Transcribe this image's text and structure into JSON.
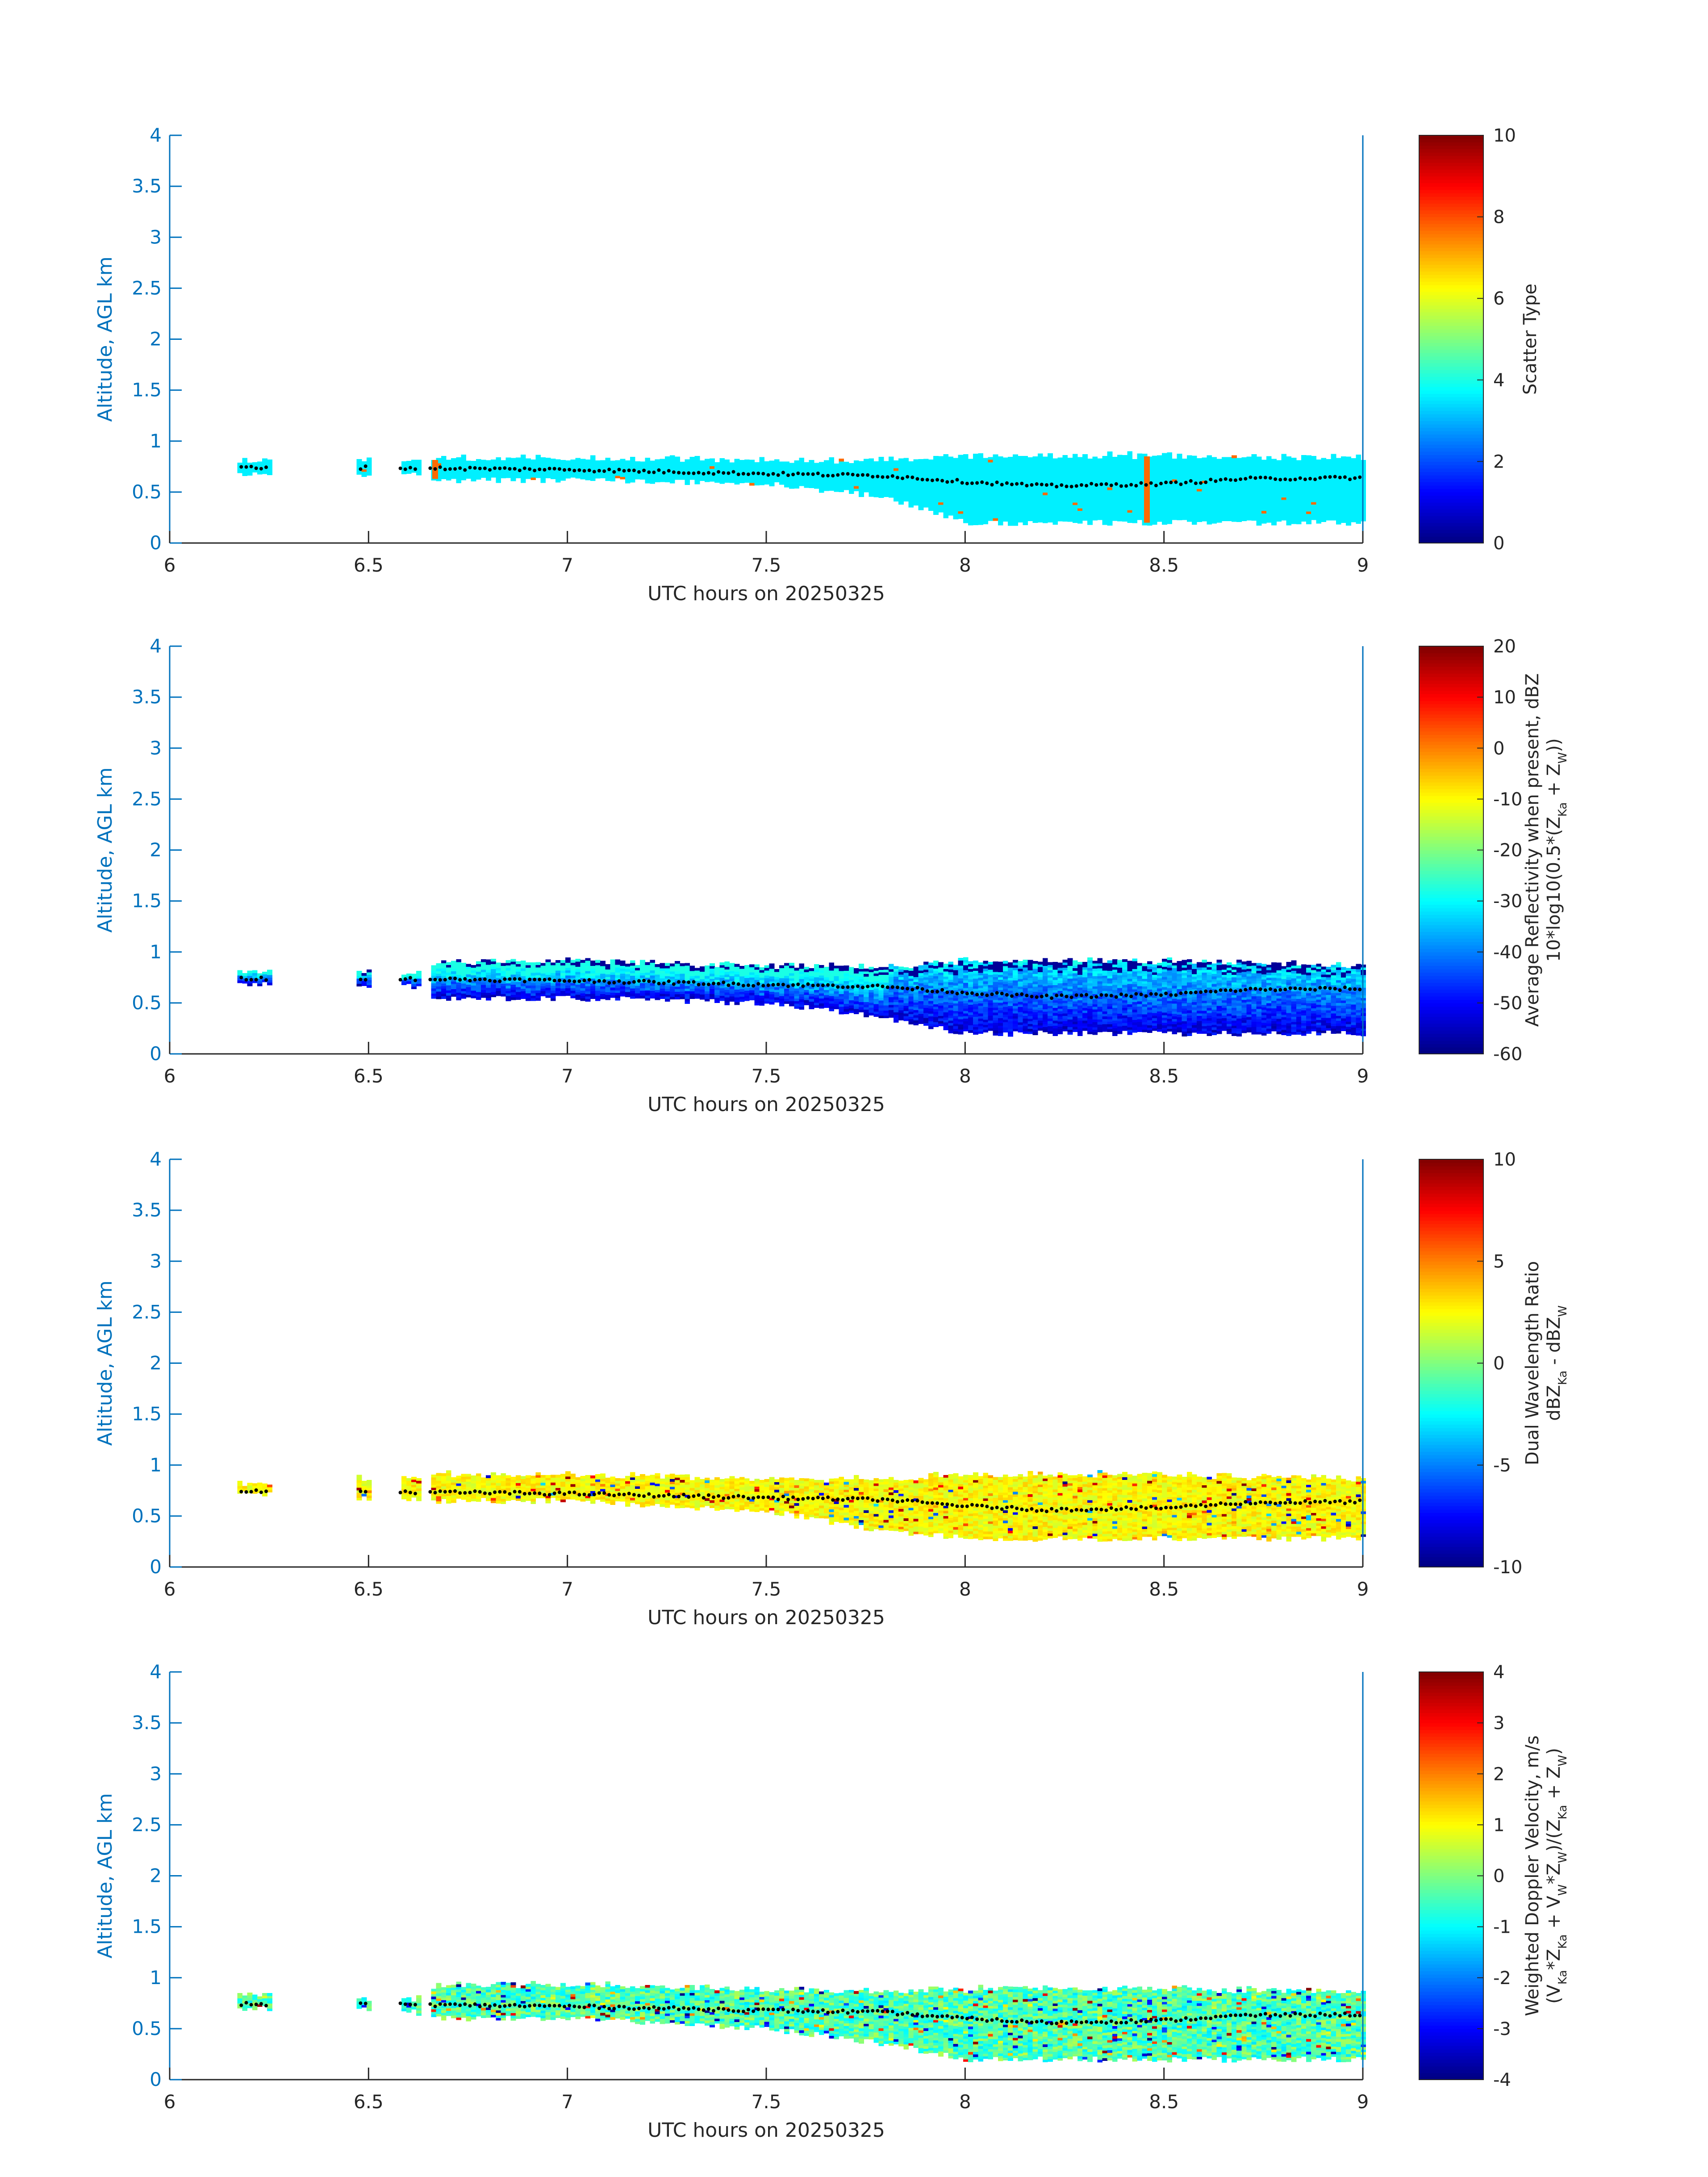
{
  "chart_data": [
    {
      "type": "heatmap",
      "panel": "Scatter Type",
      "xlabel": "UTC hours on 20250325",
      "ylabel": "Altitude, AGL km",
      "xlim": [
        6,
        9
      ],
      "ylim": [
        0,
        4
      ],
      "xticks": [
        "6",
        "6.5",
        "7",
        "7.5",
        "8",
        "8.5",
        "9"
      ],
      "yticks": [
        "0",
        "0.5",
        "1",
        "1.5",
        "2",
        "2.5",
        "3",
        "3.5",
        "4"
      ],
      "colorbar": {
        "label": "Scatter Type",
        "sublabel": "",
        "min": 0,
        "max": 10,
        "ticks": [
          "0",
          "2",
          "4",
          "6",
          "8",
          "10"
        ],
        "colormap": "jet"
      },
      "fill": "uniform",
      "base_value": 3.6,
      "special_value": 7.7,
      "special_columns": [
        6.66,
        8.45
      ],
      "cloud_layer": [
        [
          6.18,
          0.68,
          0.8
        ],
        [
          6.48,
          0.68,
          0.8
        ],
        [
          6.6,
          0.68,
          0.78
        ],
        [
          6.67,
          0.62,
          0.82
        ],
        [
          7.0,
          0.62,
          0.82
        ],
        [
          7.5,
          0.58,
          0.8
        ],
        [
          7.8,
          0.45,
          0.8
        ],
        [
          8.0,
          0.2,
          0.85
        ],
        [
          8.5,
          0.2,
          0.85
        ],
        [
          9.0,
          0.2,
          0.82
        ]
      ],
      "centerline": [
        [
          6.2,
          0.74
        ],
        [
          6.5,
          0.74
        ],
        [
          7.0,
          0.72
        ],
        [
          7.5,
          0.68
        ],
        [
          7.8,
          0.66
        ],
        [
          8.0,
          0.6
        ],
        [
          8.2,
          0.56
        ],
        [
          8.5,
          0.58
        ],
        [
          8.7,
          0.63
        ],
        [
          9.0,
          0.64
        ]
      ],
      "colors": {
        "axis": "#0072BD",
        "text": "#262626",
        "centerline": "#000000"
      }
    },
    {
      "type": "heatmap",
      "panel": "Average Reflectivity",
      "xlabel": "UTC hours on 20250325",
      "ylabel": "Altitude, AGL km",
      "xlim": [
        6,
        9
      ],
      "ylim": [
        0,
        4
      ],
      "xticks": [
        "6",
        "6.5",
        "7",
        "7.5",
        "8",
        "8.5",
        "9"
      ],
      "yticks": [
        "0",
        "0.5",
        "1",
        "1.5",
        "2",
        "2.5",
        "3",
        "3.5",
        "4"
      ],
      "colorbar": {
        "label": "Average Reflectivity when present, dBZ",
        "sublabel": "10*log10(0.5*(Z_Ka + Z_W))",
        "min": -60,
        "max": 20,
        "ticks": [
          "-60",
          "-50",
          "-40",
          "-30",
          "-20",
          "-10",
          "0",
          "10",
          "20"
        ],
        "colormap": "jet"
      },
      "fill": "gradient",
      "range": [
        -58,
        -28
      ],
      "cloud_layer": [
        [
          6.18,
          0.68,
          0.8
        ],
        [
          6.48,
          0.68,
          0.8
        ],
        [
          6.6,
          0.68,
          0.78
        ],
        [
          6.67,
          0.55,
          0.9
        ],
        [
          7.0,
          0.55,
          0.9
        ],
        [
          7.5,
          0.5,
          0.85
        ],
        [
          7.8,
          0.35,
          0.85
        ],
        [
          8.0,
          0.2,
          0.9
        ],
        [
          8.5,
          0.2,
          0.9
        ],
        [
          9.0,
          0.2,
          0.85
        ]
      ],
      "centerline": [
        [
          6.2,
          0.74
        ],
        [
          6.5,
          0.74
        ],
        [
          7.0,
          0.72
        ],
        [
          7.5,
          0.68
        ],
        [
          7.8,
          0.66
        ],
        [
          8.0,
          0.6
        ],
        [
          8.2,
          0.56
        ],
        [
          8.5,
          0.58
        ],
        [
          8.7,
          0.63
        ],
        [
          9.0,
          0.64
        ]
      ],
      "colors": {
        "axis": "#0072BD",
        "text": "#262626",
        "centerline": "#000000"
      }
    },
    {
      "type": "heatmap",
      "panel": "Dual Wavelength Ratio",
      "xlabel": "UTC hours on 20250325",
      "ylabel": "Altitude, AGL km",
      "xlim": [
        6,
        9
      ],
      "ylim": [
        0,
        4
      ],
      "xticks": [
        "6",
        "6.5",
        "7",
        "7.5",
        "8",
        "8.5",
        "9"
      ],
      "yticks": [
        "0",
        "0.5",
        "1",
        "1.5",
        "2",
        "2.5",
        "3",
        "3.5",
        "4"
      ],
      "colorbar": {
        "label": "Dual Wavelength Ratio",
        "sublabel": "dBZ_Ka - dBZ_W",
        "min": -10,
        "max": 10,
        "ticks": [
          "-10",
          "-5",
          "0",
          "5",
          "10"
        ],
        "colormap": "jet"
      },
      "fill": "noisy",
      "range": [
        1.5,
        3.5
      ],
      "cloud_layer": [
        [
          6.18,
          0.72,
          0.8
        ],
        [
          6.67,
          0.65,
          0.9
        ],
        [
          7.0,
          0.65,
          0.9
        ],
        [
          7.5,
          0.55,
          0.85
        ],
        [
          7.8,
          0.35,
          0.85
        ],
        [
          8.0,
          0.28,
          0.9
        ],
        [
          8.5,
          0.28,
          0.9
        ],
        [
          9.0,
          0.28,
          0.85
        ]
      ],
      "centerline": [
        [
          6.2,
          0.74
        ],
        [
          6.5,
          0.74
        ],
        [
          7.0,
          0.72
        ],
        [
          7.5,
          0.68
        ],
        [
          7.8,
          0.66
        ],
        [
          8.0,
          0.6
        ],
        [
          8.2,
          0.56
        ],
        [
          8.5,
          0.58
        ],
        [
          8.7,
          0.63
        ],
        [
          9.0,
          0.64
        ]
      ],
      "colors": {
        "axis": "#0072BD",
        "text": "#262626",
        "centerline": "#000000"
      }
    },
    {
      "type": "heatmap",
      "panel": "Weighted Doppler Velocity",
      "xlabel": "UTC hours on 20250325",
      "ylabel": "Altitude, AGL km",
      "xlim": [
        6,
        9
      ],
      "ylim": [
        0,
        4
      ],
      "xticks": [
        "6",
        "6.5",
        "7",
        "7.5",
        "8",
        "8.5",
        "9"
      ],
      "yticks": [
        "0",
        "0.5",
        "1",
        "1.5",
        "2",
        "2.5",
        "3",
        "3.5",
        "4"
      ],
      "colorbar": {
        "label": "Weighted Doppler Velocity, m/s",
        "sublabel": "(V_Ka*Z_Ka + V_W*Z_W)/(Z_Ka + Z_W)",
        "min": -4,
        "max": 4,
        "ticks": [
          "-4",
          "-3",
          "-2",
          "-1",
          "0",
          "1",
          "2",
          "3",
          "4"
        ],
        "colormap": "jet"
      },
      "fill": "noisy",
      "range": [
        -1.2,
        0.4
      ],
      "cloud_layer": [
        [
          6.18,
          0.7,
          0.82
        ],
        [
          6.48,
          0.7,
          0.8
        ],
        [
          6.6,
          0.68,
          0.78
        ],
        [
          6.67,
          0.6,
          0.92
        ],
        [
          7.0,
          0.6,
          0.92
        ],
        [
          7.5,
          0.5,
          0.88
        ],
        [
          7.8,
          0.35,
          0.85
        ],
        [
          8.0,
          0.2,
          0.88
        ],
        [
          8.5,
          0.2,
          0.88
        ],
        [
          9.0,
          0.2,
          0.85
        ]
      ],
      "centerline": [
        [
          6.2,
          0.74
        ],
        [
          6.5,
          0.74
        ],
        [
          7.0,
          0.72
        ],
        [
          7.5,
          0.68
        ],
        [
          7.8,
          0.66
        ],
        [
          8.0,
          0.6
        ],
        [
          8.2,
          0.56
        ],
        [
          8.5,
          0.58
        ],
        [
          8.7,
          0.63
        ],
        [
          9.0,
          0.64
        ]
      ],
      "colors": {
        "axis": "#0072BD",
        "text": "#262626",
        "centerline": "#000000"
      }
    }
  ]
}
